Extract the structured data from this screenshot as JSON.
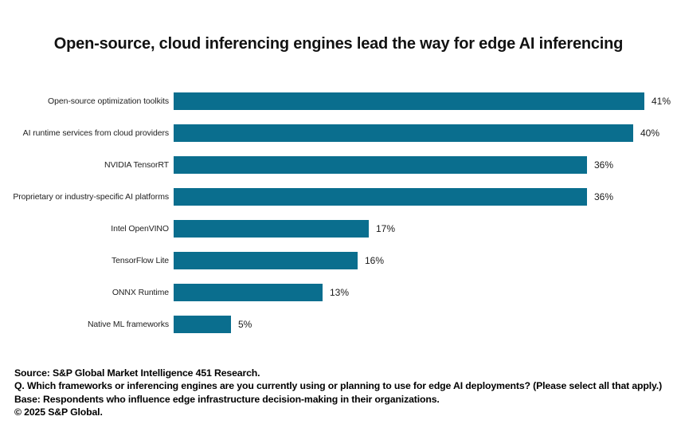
{
  "title": "Open-source, cloud inferencing engines lead the way for edge AI inferencing",
  "chart_data": {
    "type": "bar",
    "orientation": "horizontal",
    "categories": [
      "Open-source optimization toolkits",
      "AI runtime services from cloud providers",
      "NVIDIA TensorRT",
      "Proprietary or industry-specific AI platforms",
      "Intel OpenVINO",
      "TensorFlow Lite",
      "ONNX Runtime",
      "Native ML frameworks"
    ],
    "values": [
      41,
      40,
      36,
      36,
      17,
      16,
      13,
      5
    ],
    "value_suffix": "%",
    "bar_color": "#0A6E8E",
    "xlim": [
      0,
      41
    ],
    "xlabel": "",
    "ylabel": "",
    "grid": false,
    "legend_position": "none",
    "value_labels": "outside-end"
  },
  "footer": {
    "source": "Source: S&P Global Market Intelligence 451 Research.",
    "question": "Q. Which frameworks or inferencing engines are you currently using or planning to use for edge AI deployments? (Please select all that apply.)",
    "base": "Base: Respondents who influence edge infrastructure decision-making in their organizations.",
    "copyright": "© 2025 S&P Global."
  }
}
